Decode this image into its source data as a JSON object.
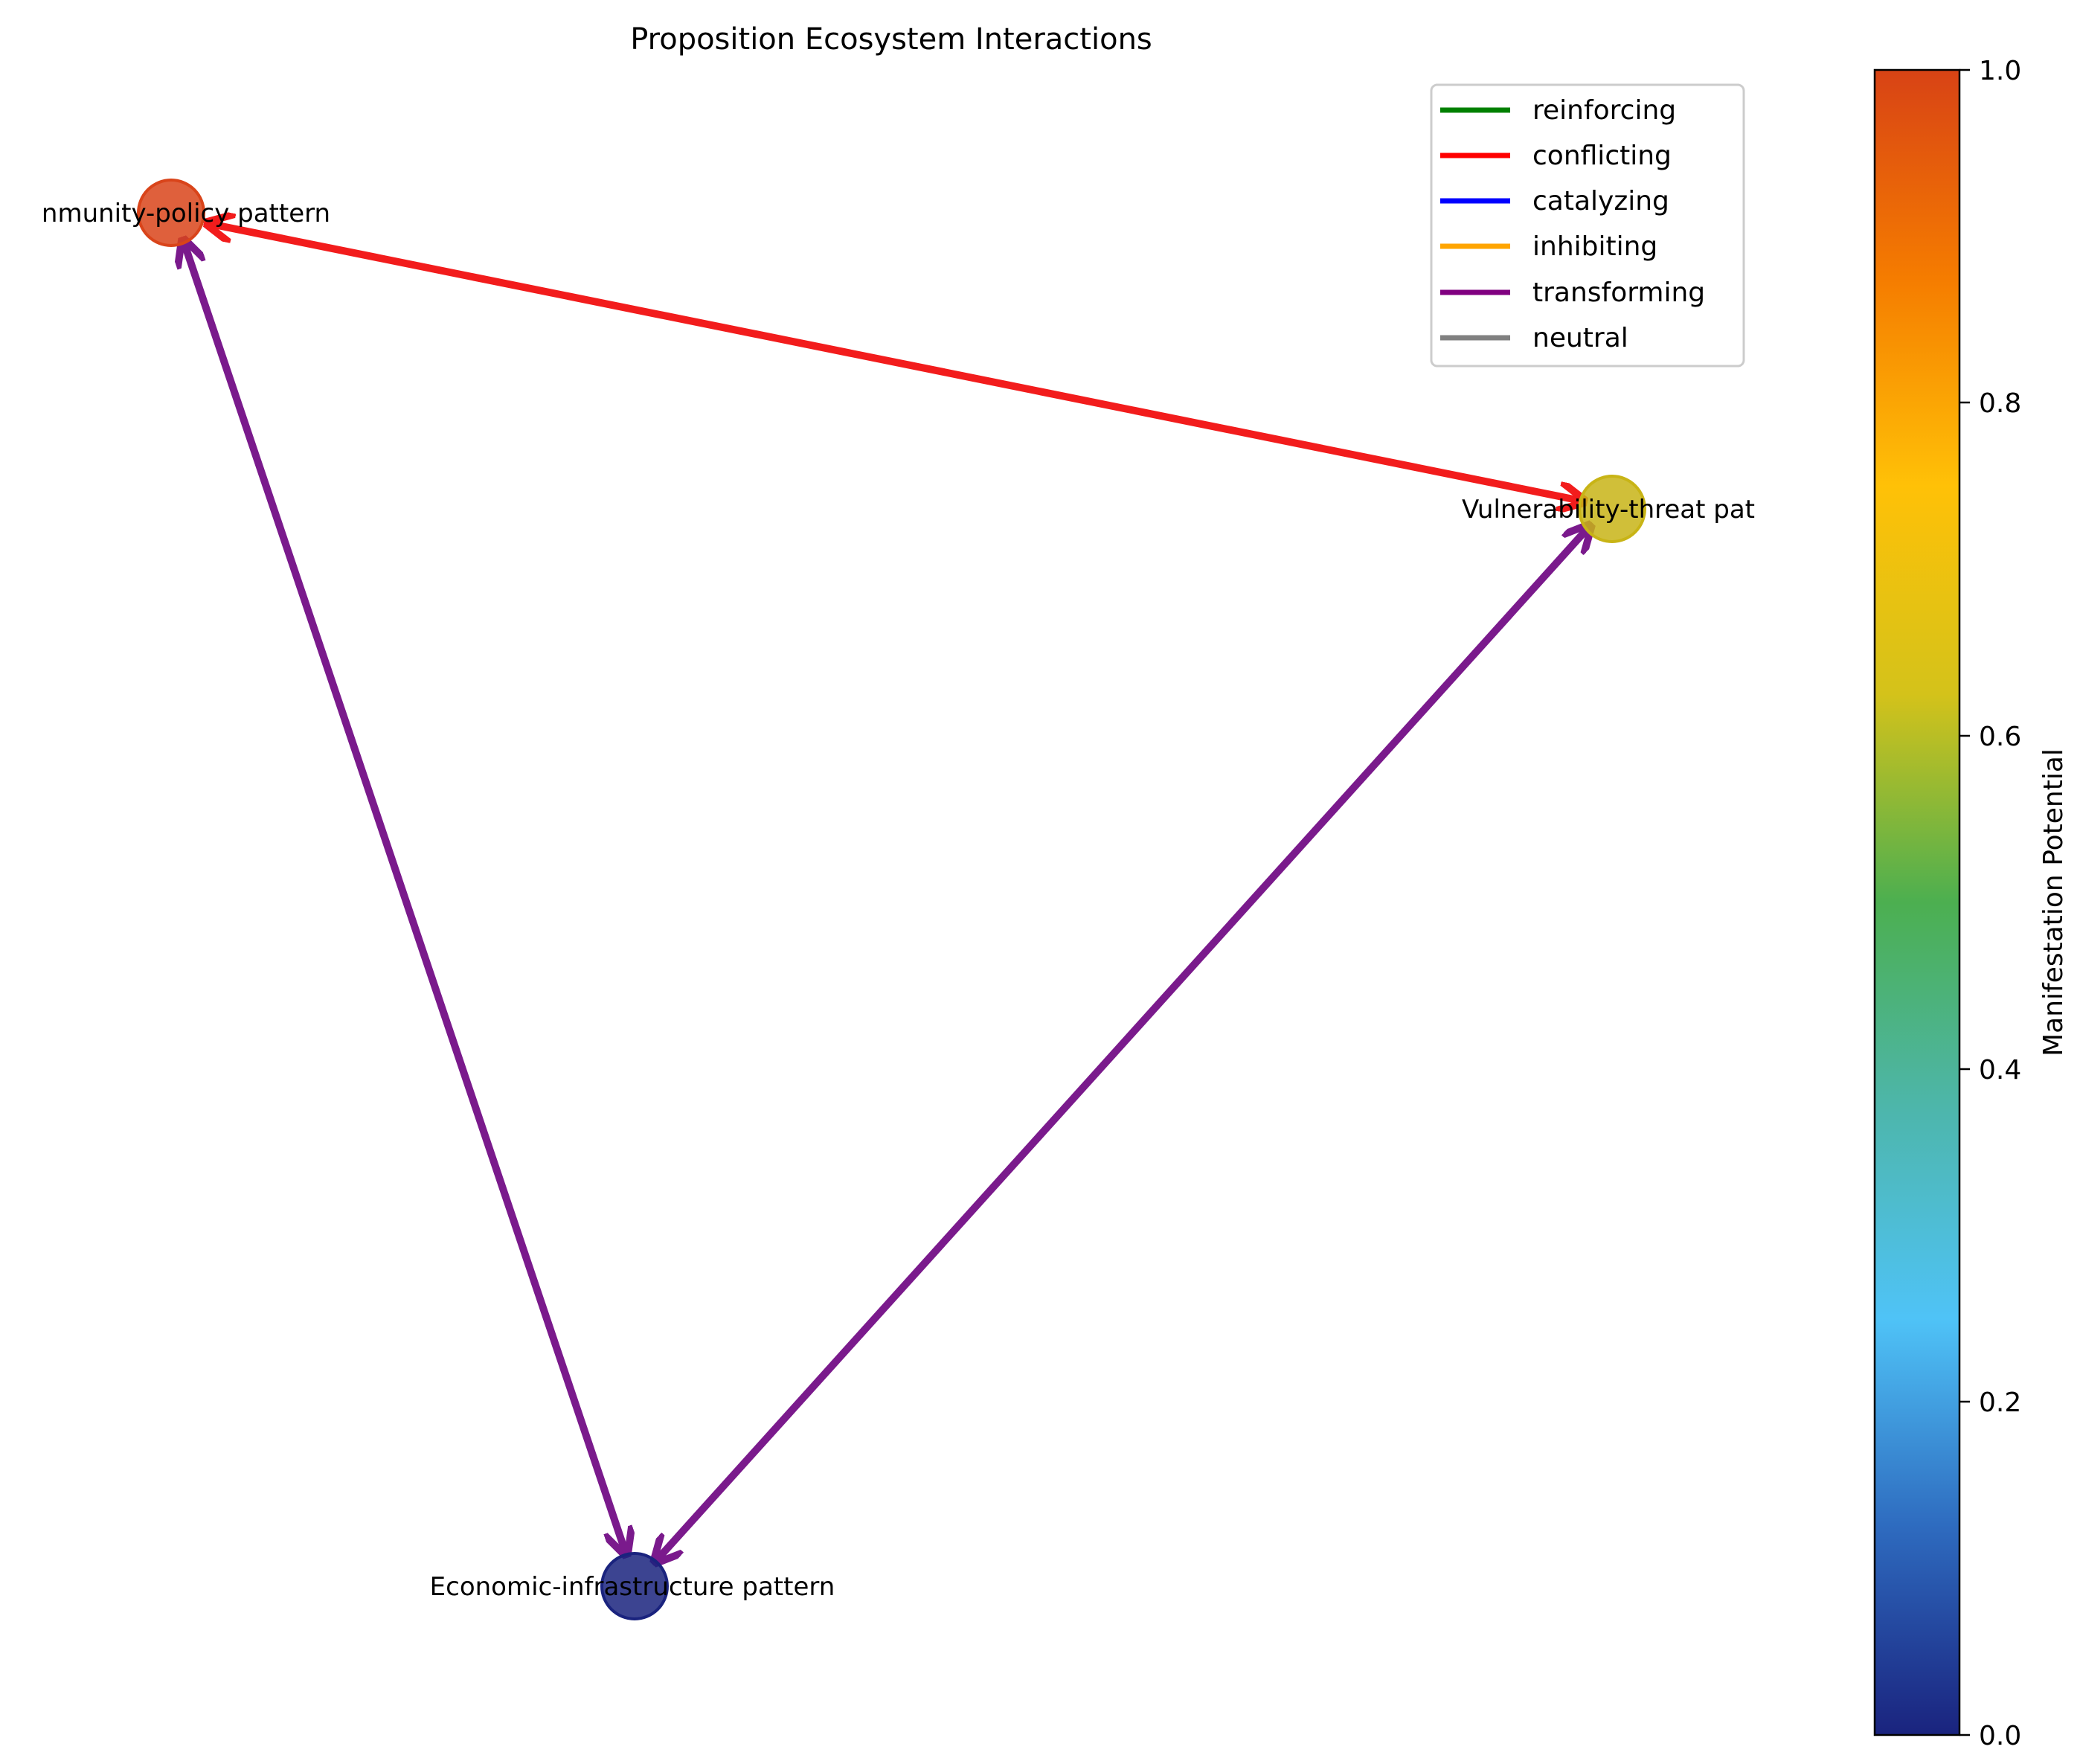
{
  "title": "Proposition Ecosystem Interactions",
  "colorbar": {
    "label": "Manifestation Potential",
    "ticks": [
      "0.0",
      "0.2",
      "0.4",
      "0.6",
      "0.8",
      "1.0"
    ],
    "stops": [
      "#1a237e",
      "#2e6bbf",
      "#4fc3f7",
      "#4db6ac",
      "#4caf50",
      "#d4c21a",
      "#ffc107",
      "#f57c00",
      "#d84315"
    ]
  },
  "legend": [
    {
      "label": "reinforcing",
      "color": "#008000"
    },
    {
      "label": "conflicting",
      "color": "#ff0000"
    },
    {
      "label": "catalyzing",
      "color": "#0000ff"
    },
    {
      "label": "inhibiting",
      "color": "#ffa500"
    },
    {
      "label": "transforming",
      "color": "#800080"
    },
    {
      "label": "neutral",
      "color": "#808080"
    }
  ],
  "nodes": [
    {
      "label": "Community-policy pattern",
      "visible_label": "nmunity-policy pattern",
      "potential": 0.95,
      "color": "#d9441a"
    },
    {
      "label": "Vulnerability-threat pattern",
      "visible_label": "Vulnerability-threat pat",
      "potential": 0.68,
      "color": "#c8b416"
    },
    {
      "label": "Economic-infrastructure pattern",
      "visible_label": "Economic-infrastructure pattern",
      "potential": 0.02,
      "color": "#1a237e"
    }
  ],
  "edges": [
    {
      "from": "Community-policy pattern",
      "to": "Vulnerability-threat pattern",
      "type": "conflicting",
      "color": "#ff0000"
    },
    {
      "from": "Community-policy pattern",
      "to": "Economic-infrastructure pattern",
      "type": "transforming",
      "color": "#800080"
    },
    {
      "from": "Vulnerability-threat pattern",
      "to": "Economic-infrastructure pattern",
      "type": "transforming",
      "color": "#800080"
    }
  ]
}
